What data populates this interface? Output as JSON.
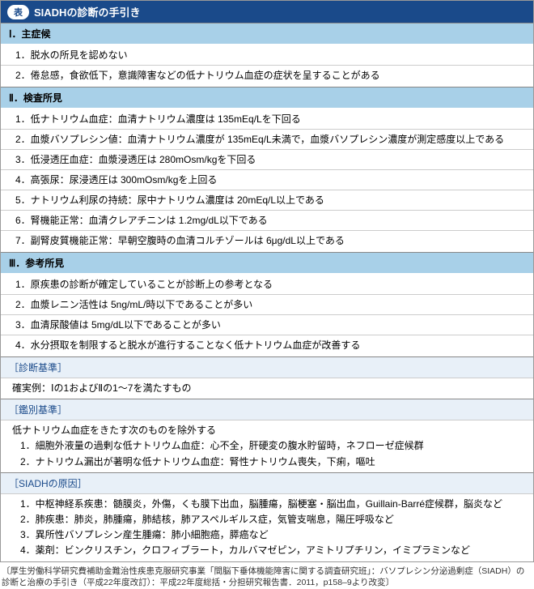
{
  "colors": {
    "header_bg": "#1a4a8a",
    "header_text": "#ffffff",
    "section_bg": "#a8d0e8",
    "subhead_bg": "#e8f0f8",
    "subhead_text": "#1a4a8a",
    "border": "#888888",
    "row_border": "#cccccc"
  },
  "title": {
    "badge": "表",
    "text": "SIADHの診断の手引き"
  },
  "sections": [
    {
      "head": "Ⅰ．主症候",
      "items": [
        "1．脱水の所見を認めない",
        "2．倦怠感，食欲低下，意識障害などの低ナトリウム血症の症状を呈することがある"
      ]
    },
    {
      "head": "Ⅱ．検査所見",
      "items": [
        "1．低ナトリウム血症：血清ナトリウム濃度は 135mEq/Lを下回る",
        "2．血漿バソプレシン値：血清ナトリウム濃度が 135mEq/L未満で，血漿バソプレシン濃度が測定感度以上である",
        "3．低浸透圧血症：血漿浸透圧は 280mOsm/kgを下回る",
        "4．高張尿：尿浸透圧は 300mOsm/kgを上回る",
        "5．ナトリウム利尿の持続：尿中ナトリウム濃度は 20mEq/L以上である",
        "6．腎機能正常：血清クレアチニンは 1.2mg/dL以下である",
        "7．副腎皮質機能正常：早朝空腹時の血清コルチゾールは 6μg/dL以上である"
      ]
    },
    {
      "head": "Ⅲ．参考所見",
      "items": [
        "1．原疾患の診断が確定していることが診断上の参考となる",
        "2．血漿レニン活性は 5ng/mL/時以下であることが多い",
        "3．血清尿酸値は 5mg/dL以下であることが多い",
        "4．水分摂取を制限すると脱水が進行することなく低ナトリウム血症が改善する"
      ]
    }
  ],
  "subsections": [
    {
      "head": "［診断基準］",
      "body": "確実例：Ⅰの1およびⅡの1〜7を満たすもの"
    },
    {
      "head": "［鑑別基準］",
      "lead": "低ナトリウム血症をきたす次のものを除外する",
      "list": [
        "1．細胞外液量の過剰な低ナトリウム血症：心不全，肝硬変の腹水貯留時，ネフローゼ症候群",
        "2．ナトリウム漏出が著明な低ナトリウム血症：腎性ナトリウム喪失，下痢，嘔吐"
      ]
    },
    {
      "head": "［SIADHの原因］",
      "list": [
        "1．中枢神経系疾患：髄膜炎，外傷，くも膜下出血，脳腫瘍，脳梗塞・脳出血，Guillain-Barré症候群，脳炎など",
        "2．肺疾患：肺炎，肺腫瘍，肺結核，肺アスペルギルス症，気管支喘息，陽圧呼吸など",
        "3．異所性バソプレシン産生腫瘍：肺小細胞癌，膵癌など",
        "4．薬剤：ビンクリスチン，クロフィブラート，カルバマゼピン，アミトリプチリン，イミプラミンなど"
      ]
    }
  ],
  "footer": "〔厚生労働科学研究費補助金難治性疾患克服研究事業「間脳下垂体機能障害に関する調査研究班」：バソプレシン分泌過剰症（SIADH）の診断と治療の手引き（平成22年度改訂）：平成22年度総括・分担研究報告書．2011，p158–9より改変〕"
}
